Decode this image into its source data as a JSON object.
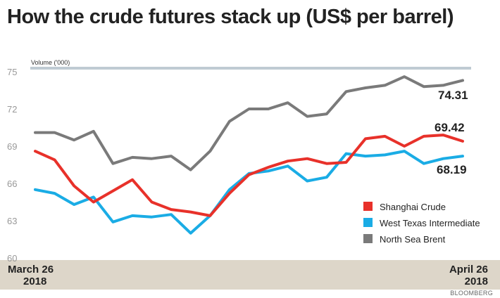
{
  "chart_data": {
    "type": "line",
    "title": "How the crude futures stack up (US$ per barrel)",
    "ylim": [
      60,
      75
    ],
    "yticks": [
      75,
      72,
      69,
      66,
      63,
      60
    ],
    "grid": false,
    "volume_label": "Volume ('000)",
    "x_start_label": [
      "March 26",
      "2018"
    ],
    "x_end_label": [
      "April 26",
      "2018"
    ],
    "legend_position": "bottom-right",
    "source": "BLOOMBERG",
    "series": [
      {
        "name": "Shanghai Crude",
        "color": "#e8312a",
        "end_label": "69.42",
        "values": [
          68.6,
          67.9,
          65.8,
          64.5,
          65.4,
          66.3,
          64.5,
          63.9,
          63.7,
          63.4,
          65.2,
          66.7,
          67.3,
          67.8,
          68.0,
          67.6,
          67.7,
          69.6,
          69.8,
          69.0,
          69.8,
          69.9,
          69.4
        ]
      },
      {
        "name": "West Texas Intermediate",
        "color": "#1aace5",
        "end_label": "68.19",
        "values": [
          65.5,
          65.2,
          64.3,
          64.9,
          62.9,
          63.4,
          63.3,
          63.5,
          62.0,
          63.4,
          65.5,
          66.8,
          67.0,
          67.4,
          66.2,
          66.5,
          68.4,
          68.2,
          68.3,
          68.6,
          67.6,
          68.0,
          68.2
        ]
      },
      {
        "name": "North Sea Brent",
        "color": "#7a7a7a",
        "end_label": "74.31",
        "values": [
          70.1,
          70.1,
          69.5,
          70.2,
          67.6,
          68.1,
          68.0,
          68.2,
          67.1,
          68.6,
          71.0,
          72.0,
          72.0,
          72.5,
          71.4,
          71.6,
          73.4,
          73.7,
          73.9,
          74.6,
          73.8,
          73.9,
          74.3
        ]
      }
    ]
  }
}
